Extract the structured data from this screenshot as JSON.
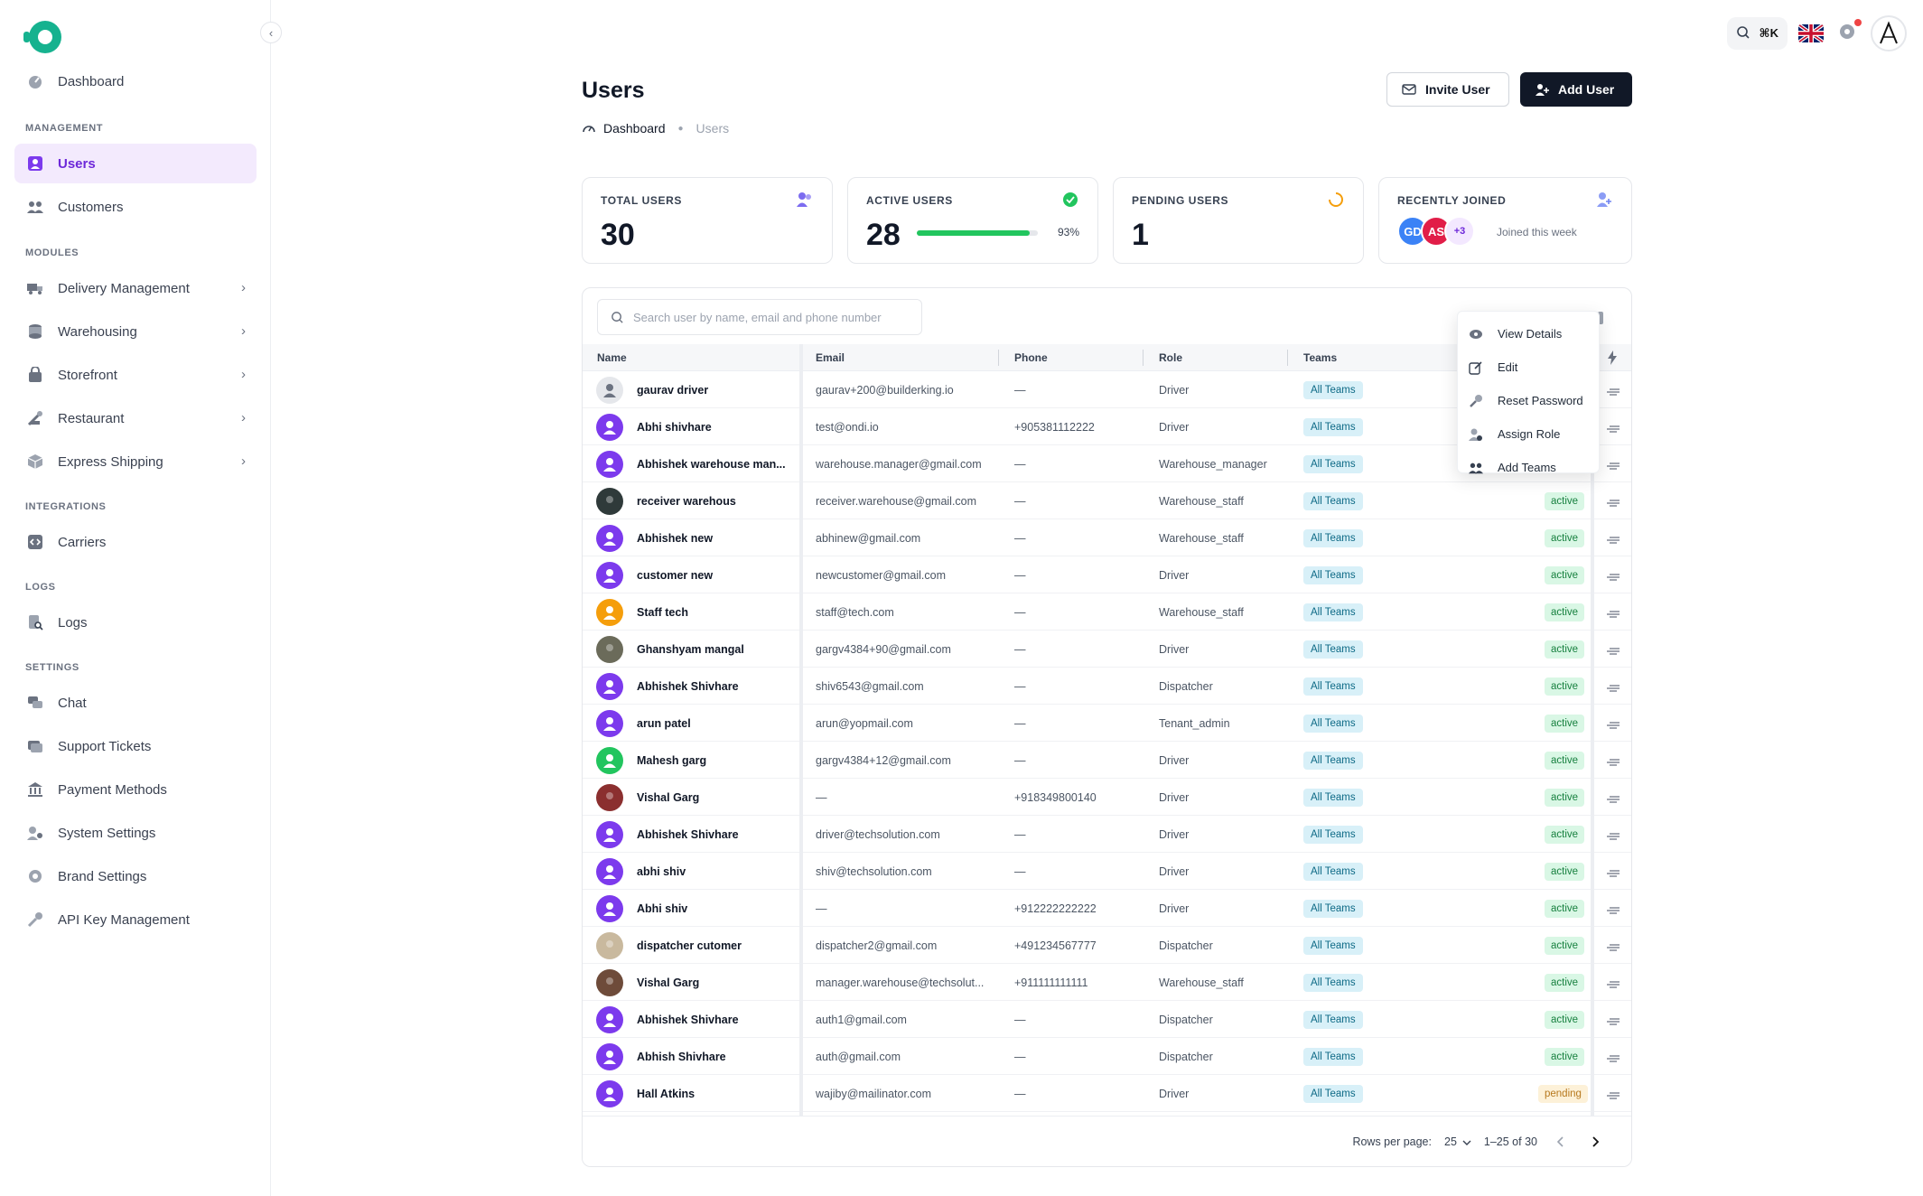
{
  "sidebar": {
    "dashboard": "Dashboard",
    "sections": {
      "management": "MANAGEMENT",
      "modules": "MODULES",
      "integrations": "INTEGRATIONS",
      "logs": "LOGS",
      "settings": "SETTINGS"
    },
    "management_items": [
      "Users",
      "Customers"
    ],
    "module_items": [
      "Delivery Management",
      "Warehousing",
      "Storefront",
      "Restaurant",
      "Express Shipping"
    ],
    "integration_items": [
      "Carriers"
    ],
    "log_items": [
      "Logs"
    ],
    "settings_items": [
      "Chat",
      "Support Tickets",
      "Payment Methods",
      "System Settings",
      "Brand Settings",
      "API Key Management"
    ]
  },
  "topbar": {
    "shortcut": "⌘K"
  },
  "page": {
    "title": "Users",
    "breadcrumb": {
      "home": "Dashboard",
      "current": "Users"
    },
    "invite_label": "Invite User",
    "add_label": "Add User"
  },
  "stats": {
    "total": {
      "label": "TOTAL USERS",
      "value": "30"
    },
    "active": {
      "label": "ACTIVE USERS",
      "value": "28",
      "percent_text": "93%",
      "percent": 0.93
    },
    "pending": {
      "label": "PENDING USERS",
      "value": "1"
    },
    "recent": {
      "label": "RECENTLY JOINED",
      "avatars": [
        "GD",
        "AS",
        "+3"
      ],
      "note": "Joined this week"
    }
  },
  "table": {
    "search_placeholder": "Search user by name, email and phone number",
    "columns": [
      "Name",
      "Email",
      "Phone",
      "Role",
      "Teams"
    ],
    "rows": [
      {
        "name": "gaurav driver",
        "email": "gaurav+200@builderking.io",
        "phone": "—",
        "role": "Driver",
        "team": "All Teams",
        "status": "",
        "avatar": "default"
      },
      {
        "name": "Abhi shivhare",
        "email": "test@ondi.io",
        "phone": "+905381112222",
        "role": "Driver",
        "team": "All Teams",
        "status": "",
        "avatar": "purple"
      },
      {
        "name": "Abhishek warehouse man...",
        "email": "warehouse.manager@gmail.com",
        "phone": "—",
        "role": "Warehouse_manager",
        "team": "All Teams",
        "status": "",
        "avatar": "purple"
      },
      {
        "name": "receiver warehous",
        "email": "receiver.warehouse@gmail.com",
        "phone": "—",
        "role": "Warehouse_staff",
        "team": "All Teams",
        "status": "active",
        "avatar": "photo-dark"
      },
      {
        "name": "Abhishek new",
        "email": "abhinew@gmail.com",
        "phone": "—",
        "role": "Warehouse_staff",
        "team": "All Teams",
        "status": "active",
        "avatar": "purple"
      },
      {
        "name": "customer new",
        "email": "newcustomer@gmail.com",
        "phone": "—",
        "role": "Driver",
        "team": "All Teams",
        "status": "active",
        "avatar": "purple"
      },
      {
        "name": "Staff tech",
        "email": "staff@tech.com",
        "phone": "—",
        "role": "Warehouse_staff",
        "team": "All Teams",
        "status": "active",
        "avatar": "orange"
      },
      {
        "name": "Ghanshyam mangal",
        "email": "gargv4384+90@gmail.com",
        "phone": "—",
        "role": "Driver",
        "team": "All Teams",
        "status": "active",
        "avatar": "photo-grey"
      },
      {
        "name": "Abhishek Shivhare",
        "email": "shiv6543@gmail.com",
        "phone": "—",
        "role": "Dispatcher",
        "team": "All Teams",
        "status": "active",
        "avatar": "purple"
      },
      {
        "name": "arun patel",
        "email": "arun@yopmail.com",
        "phone": "—",
        "role": "Tenant_admin",
        "team": "All Teams",
        "status": "active",
        "avatar": "purple"
      },
      {
        "name": "Mahesh garg",
        "email": "gargv4384+12@gmail.com",
        "phone": "—",
        "role": "Driver",
        "team": "All Teams",
        "status": "active",
        "avatar": "green"
      },
      {
        "name": "Vishal Garg",
        "email": "—",
        "phone": "+918349800140",
        "role": "Driver",
        "team": "All Teams",
        "status": "active",
        "avatar": "photo-red"
      },
      {
        "name": "Abhishek Shivhare",
        "email": "driver@techsolution.com",
        "phone": "—",
        "role": "Driver",
        "team": "All Teams",
        "status": "active",
        "avatar": "purple"
      },
      {
        "name": "abhi shiv",
        "email": "shiv@techsolution.com",
        "phone": "—",
        "role": "Driver",
        "team": "All Teams",
        "status": "active",
        "avatar": "purple"
      },
      {
        "name": "Abhi shiv",
        "email": "—",
        "phone": "+912222222222",
        "role": "Driver",
        "team": "All Teams",
        "status": "active",
        "avatar": "purple"
      },
      {
        "name": "dispatcher cutomer",
        "email": "dispatcher2@gmail.com",
        "phone": "+491234567777",
        "role": "Dispatcher",
        "team": "All Teams",
        "status": "active",
        "avatar": "photo-light"
      },
      {
        "name": "Vishal Garg",
        "email": "manager.warehouse@techsolut...",
        "phone": "+911111111111",
        "role": "Warehouse_staff",
        "team": "All Teams",
        "status": "active",
        "avatar": "photo-brown"
      },
      {
        "name": "Abhishek Shivhare",
        "email": "auth1@gmail.com",
        "phone": "—",
        "role": "Dispatcher",
        "team": "All Teams",
        "status": "active",
        "avatar": "purple"
      },
      {
        "name": "Abhish Shivhare",
        "email": "auth@gmail.com",
        "phone": "—",
        "role": "Dispatcher",
        "team": "All Teams",
        "status": "active",
        "avatar": "purple"
      },
      {
        "name": "Hall Atkins",
        "email": "wajiby@mailinator.com",
        "phone": "—",
        "role": "Driver",
        "team": "All Teams",
        "status": "pending",
        "avatar": "purple"
      }
    ],
    "pagination": {
      "rows_label": "Rows per page:",
      "rows_value": "25",
      "range": "1–25 of 30"
    }
  },
  "dropdown": {
    "items": [
      "View Details",
      "Edit",
      "Reset Password",
      "Assign Role",
      "Add Teams"
    ]
  },
  "colors": {
    "accent": "#7c3aed",
    "brand": "#16b28f",
    "dark_button": "#111827"
  }
}
